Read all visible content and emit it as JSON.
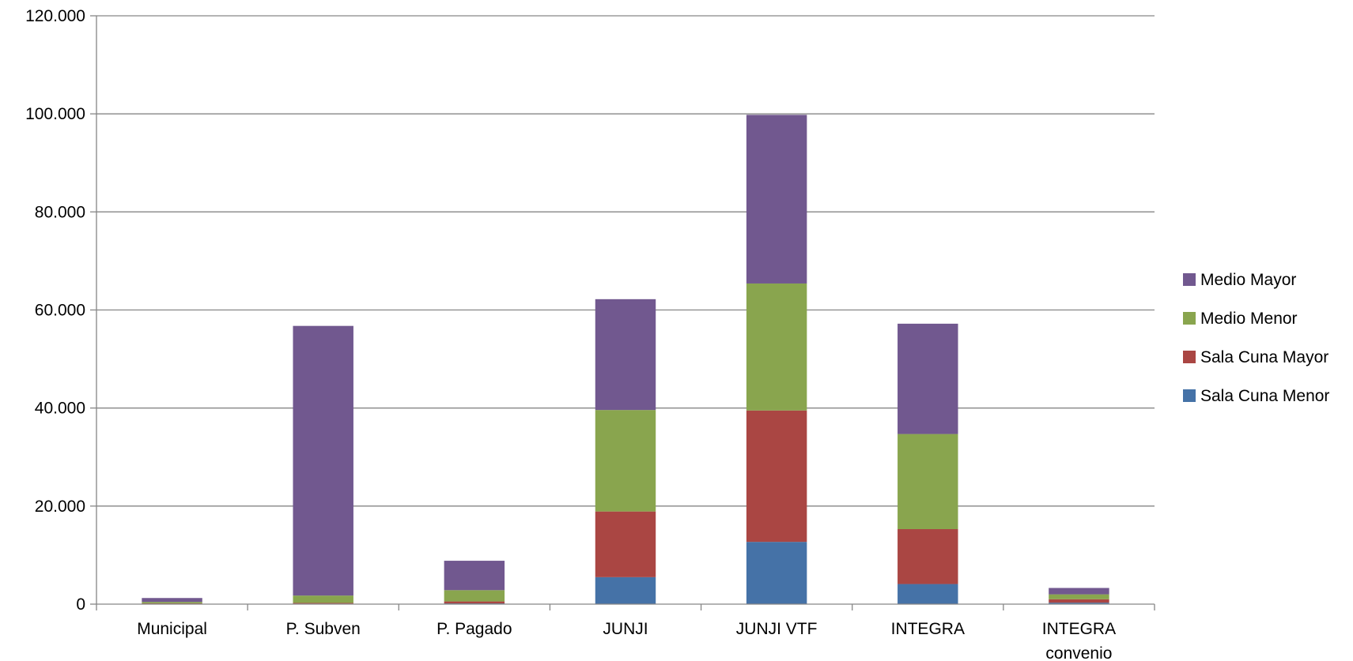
{
  "chart_data": {
    "type": "bar",
    "stacked": true,
    "categories": [
      [
        "Municipal"
      ],
      [
        "P. Subven"
      ],
      [
        "P. Pagado"
      ],
      [
        "JUNJI"
      ],
      [
        "JUNJI VTF"
      ],
      [
        "INTEGRA"
      ],
      [
        "INTEGRA",
        "convenio"
      ]
    ],
    "series": [
      {
        "name": "Sala Cuna Menor",
        "color": "#4572a7",
        "values": [
          50,
          100,
          150,
          5500,
          12700,
          4100,
          300
        ]
      },
      {
        "name": "Sala Cuna Mayor",
        "color": "#aa4643",
        "values": [
          100,
          150,
          400,
          13400,
          26800,
          11200,
          700
        ]
      },
      {
        "name": "Medio Menor",
        "color": "#89a54e",
        "values": [
          300,
          1500,
          2300,
          20700,
          25900,
          19400,
          1000
        ]
      },
      {
        "name": "Medio Mayor",
        "color": "#71588f",
        "values": [
          800,
          55000,
          6000,
          22600,
          34400,
          22500,
          1300
        ]
      }
    ],
    "yticks": [
      "0",
      "20.000",
      "40.000",
      "60.000",
      "80.000",
      "100.000",
      "120.000"
    ],
    "ylim": [
      0,
      120000
    ],
    "ystep": 20000,
    "grid": true,
    "legend_position": "right",
    "legend_order": [
      "Medio Mayor",
      "Medio Menor",
      "Sala Cuna Mayor",
      "Sala Cuna Menor"
    ],
    "title": "",
    "xlabel": "",
    "ylabel": ""
  }
}
